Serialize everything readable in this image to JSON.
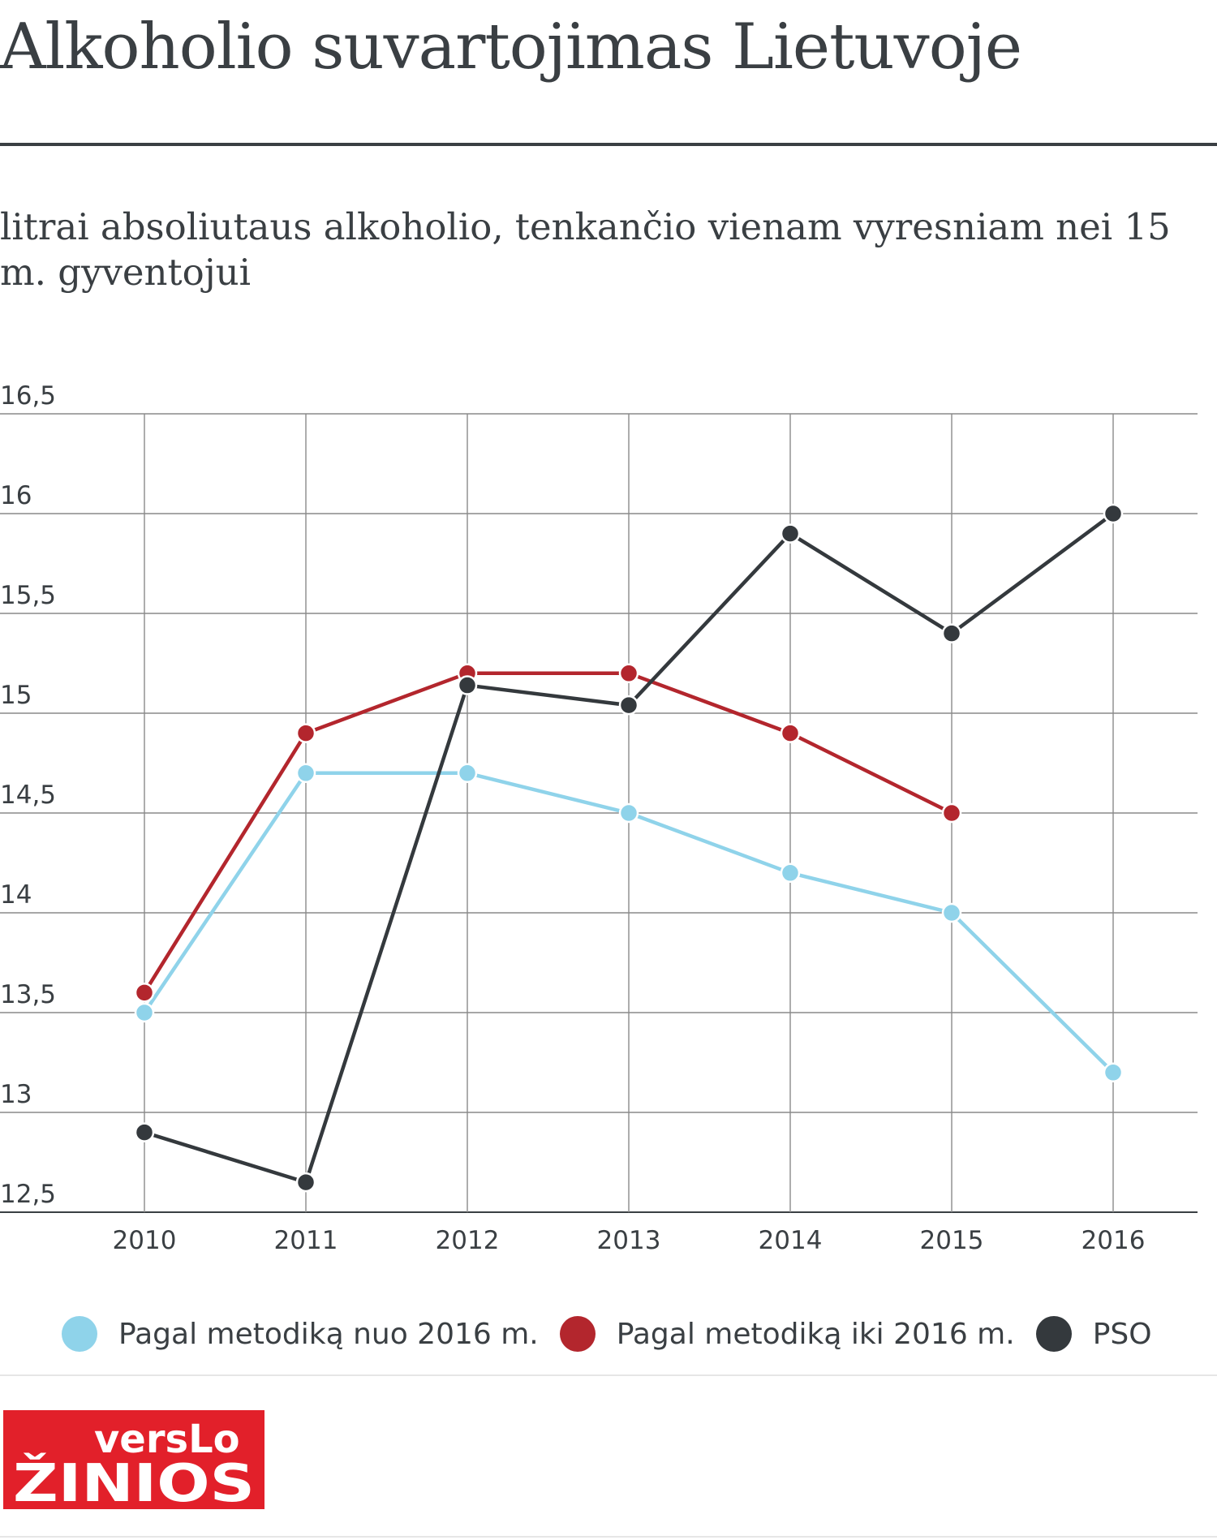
{
  "title": "Alkoholio suvartojimas Lietuvoje",
  "subtitle": "litrai absoliutaus alkoholio, tenkančio vienam vyresniam nei 15 m. gyventojui",
  "chart_data": {
    "type": "line",
    "x": [
      "2010",
      "2011",
      "2012",
      "2013",
      "2014",
      "2015",
      "2016"
    ],
    "ylim": [
      12.5,
      16.5
    ],
    "yticks": [
      "12,5",
      "13",
      "13,5",
      "14",
      "14,5",
      "15",
      "15,5",
      "16",
      "16,5"
    ],
    "grid": true,
    "legend_position": "bottom",
    "series": [
      {
        "name": "Pagal metodiką nuo 2016 m.",
        "color": "#8fd3ea",
        "values": [
          13.5,
          14.7,
          14.7,
          14.5,
          14.2,
          14.0,
          13.2
        ]
      },
      {
        "name": "Pagal metodiką iki 2016 m.",
        "color": "#b3262d",
        "values": [
          13.6,
          14.9,
          15.2,
          15.2,
          14.9,
          14.5,
          null
        ]
      },
      {
        "name": "PSO",
        "color": "#34393d",
        "values": [
          12.9,
          12.65,
          15.14,
          15.04,
          15.9,
          15.4,
          16.0
        ]
      }
    ]
  },
  "logo": {
    "line1": "versLo",
    "line2": "ŽINIOS",
    "color": "#e2202a"
  }
}
